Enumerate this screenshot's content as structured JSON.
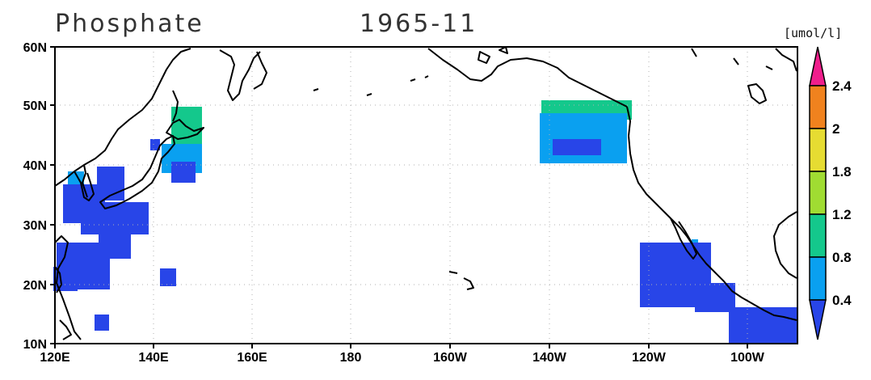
{
  "map": {
    "variable": "Phosphate",
    "date": "1965-11",
    "units": "[umol/l]",
    "region": "North Pacific",
    "lon_range": [
      120,
      270
    ],
    "lat_range": [
      10,
      60
    ],
    "x_ticks": [
      "120E",
      "140E",
      "160E",
      "180",
      "160W",
      "140W",
      "120W",
      "100W"
    ],
    "y_ticks": [
      "60N",
      "50N",
      "40N",
      "30N",
      "20N",
      "10N"
    ],
    "gridlines": "dotted"
  },
  "colorbar": {
    "labels": [
      "2.4",
      "2",
      "1.8",
      "1.2",
      "0.8",
      "0.4"
    ],
    "colors": {
      "lt_0.4": "#2845e8",
      "0.4_0.8": "#0aa0f0",
      "0.8_1.2": "#14c88c",
      "1.2_1.8": "#a0dc32",
      "1.8_2": "#e6dc32",
      "2_2.4": "#f0821e",
      "gt_2.4": "#ef1e8c"
    }
  }
}
